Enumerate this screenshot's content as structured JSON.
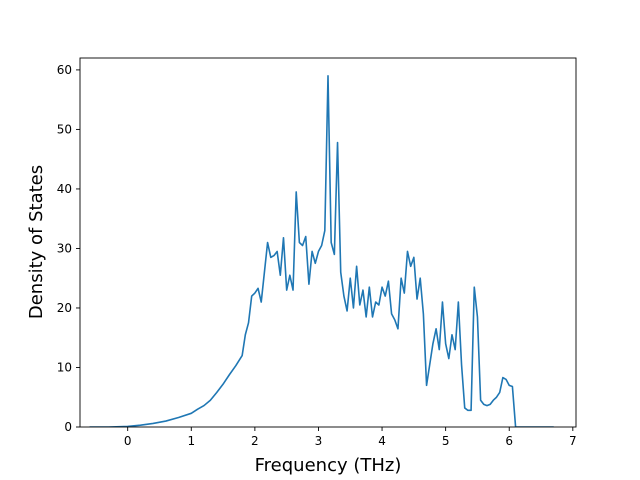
{
  "chart_data": {
    "type": "line",
    "title": "",
    "xlabel": "Frequency (THz)",
    "ylabel": "Density of States",
    "xlim": [
      -0.75,
      7.05
    ],
    "ylim": [
      0,
      62
    ],
    "xticks": [
      0,
      1,
      2,
      3,
      4,
      5,
      6,
      7
    ],
    "yticks": [
      0,
      10,
      20,
      30,
      40,
      50,
      60
    ],
    "x_tick_labels": [
      "0",
      "1",
      "2",
      "3",
      "4",
      "5",
      "6",
      "7"
    ],
    "y_tick_labels": [
      "0",
      "10",
      "20",
      "30",
      "40",
      "50",
      "60"
    ],
    "grid": false,
    "legend": "none",
    "series_color": "#1f77b4",
    "series": [
      {
        "x": [
          -0.6,
          -0.3,
          0.0,
          0.2,
          0.4,
          0.6,
          0.8,
          1.0,
          1.1,
          1.2,
          1.3,
          1.4,
          1.5,
          1.6,
          1.7,
          1.8,
          1.85,
          1.9,
          1.95,
          2.0,
          2.05,
          2.1,
          2.15,
          2.2,
          2.25,
          2.3,
          2.35,
          2.4,
          2.45,
          2.5,
          2.55,
          2.6,
          2.65,
          2.7,
          2.75,
          2.8,
          2.85,
          2.9,
          2.95,
          3.0,
          3.05,
          3.1,
          3.15,
          3.2,
          3.25,
          3.3,
          3.35,
          3.4,
          3.45,
          3.5,
          3.55,
          3.6,
          3.65,
          3.7,
          3.75,
          3.8,
          3.85,
          3.9,
          3.95,
          4.0,
          4.05,
          4.1,
          4.15,
          4.2,
          4.25,
          4.3,
          4.35,
          4.4,
          4.45,
          4.5,
          4.55,
          4.6,
          4.65,
          4.7,
          4.75,
          4.8,
          4.85,
          4.9,
          4.95,
          5.0,
          5.05,
          5.1,
          5.15,
          5.2,
          5.25,
          5.3,
          5.35,
          5.4,
          5.45,
          5.5,
          5.55,
          5.6,
          5.65,
          5.7,
          5.75,
          5.8,
          5.85,
          5.9,
          5.95,
          6.0,
          6.05,
          6.1,
          6.2,
          6.4,
          6.7
        ],
        "y": [
          0.0,
          0.0,
          0.1,
          0.3,
          0.6,
          1.0,
          1.6,
          2.3,
          3.0,
          3.6,
          4.5,
          5.8,
          7.2,
          8.8,
          10.3,
          12.0,
          15.5,
          17.5,
          22.0,
          22.5,
          23.3,
          21.0,
          26.0,
          31.0,
          28.5,
          28.8,
          29.5,
          25.5,
          31.8,
          23.0,
          25.5,
          23.0,
          39.5,
          31.0,
          30.5,
          32.0,
          24.0,
          29.5,
          27.5,
          29.5,
          30.5,
          33.0,
          59.0,
          31.0,
          29.0,
          47.8,
          26.0,
          22.0,
          19.5,
          25.0,
          20.0,
          27.0,
          20.5,
          23.0,
          18.5,
          23.5,
          18.5,
          21.0,
          20.5,
          23.5,
          22.0,
          24.5,
          19.0,
          18.0,
          16.5,
          25.0,
          22.5,
          29.5,
          27.0,
          28.5,
          21.5,
          25.0,
          19.0,
          7.0,
          10.5,
          14.0,
          16.5,
          13.0,
          21.0,
          14.0,
          11.5,
          15.5,
          13.0,
          21.0,
          10.5,
          3.2,
          2.8,
          2.8,
          23.5,
          18.5,
          4.5,
          3.8,
          3.6,
          3.8,
          4.5,
          5.0,
          5.8,
          8.3,
          8.0,
          7.0,
          6.8,
          0.0,
          0.0,
          0.0,
          0.0
        ]
      }
    ]
  }
}
